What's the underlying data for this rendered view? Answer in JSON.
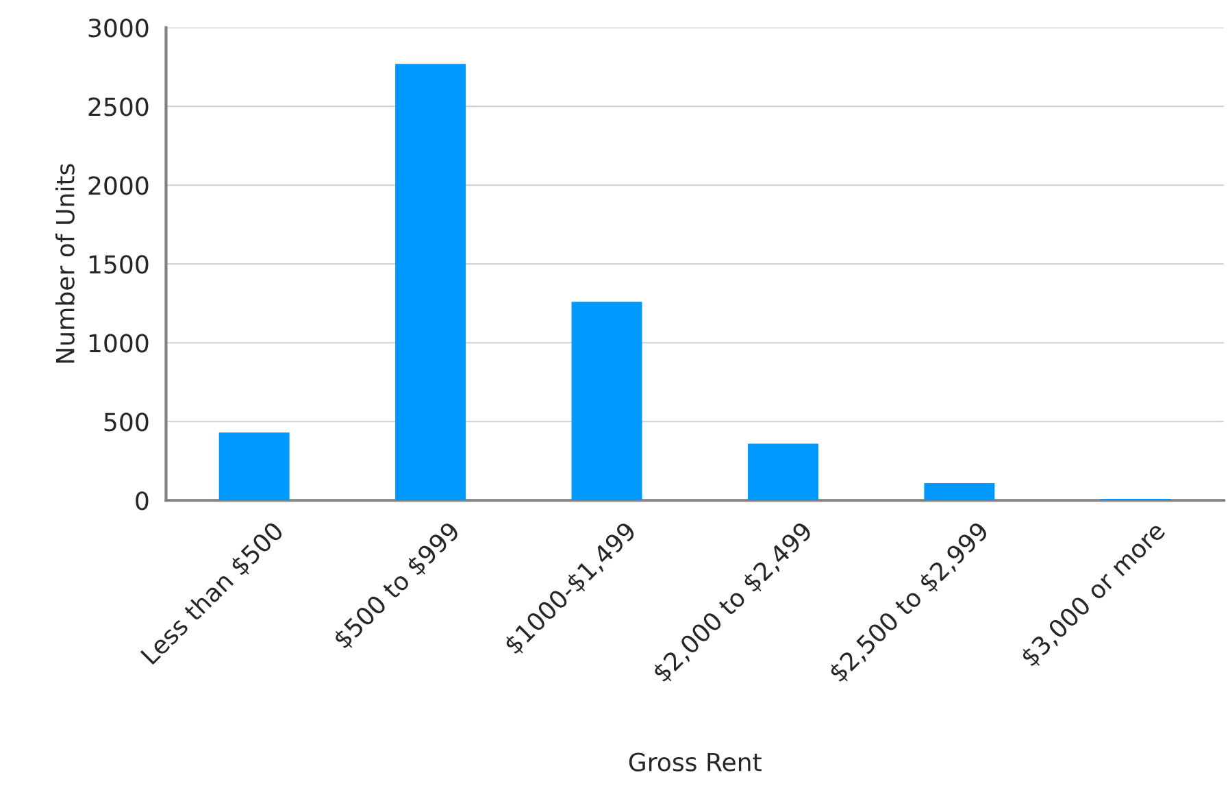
{
  "chart_data": {
    "type": "bar",
    "xlabel": "Gross Rent",
    "ylabel": "Number of Units",
    "categories": [
      "Less than $500",
      "$500 to $999",
      "$1000-$1,499",
      "$2,000 to $2,499",
      "$2,500 to $2,999",
      "$3,000 or more"
    ],
    "values": [
      430,
      2770,
      1260,
      360,
      110,
      10
    ],
    "color": "#0099ff",
    "ylim": [
      0,
      3000
    ],
    "yticks": [
      0,
      500,
      1000,
      1500,
      2000,
      2500,
      3000
    ],
    "grid": "y",
    "legend": false
  }
}
